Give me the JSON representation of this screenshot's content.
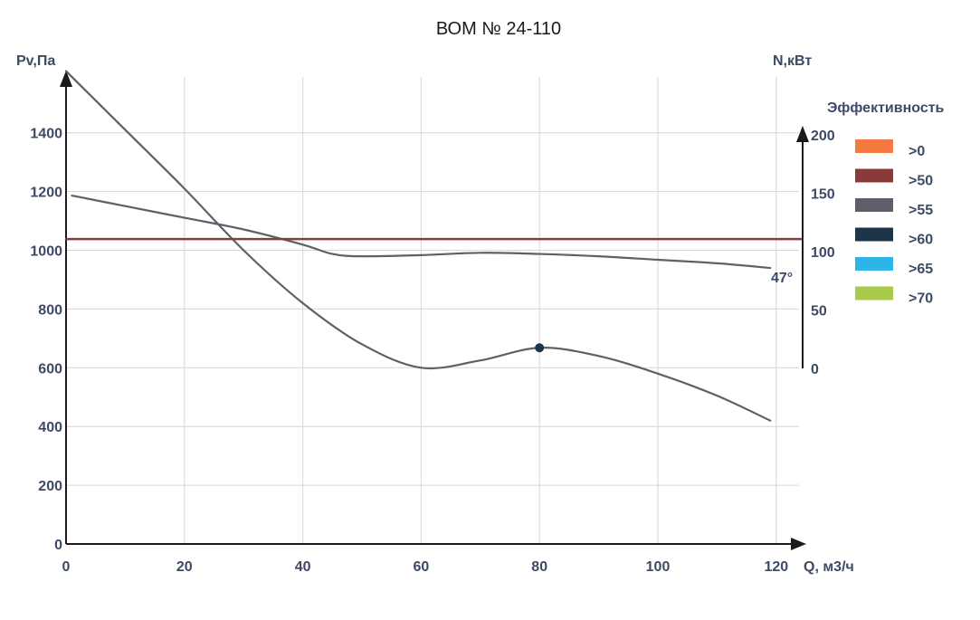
{
  "chart_data": {
    "type": "line",
    "title": "ВОМ № 24-110",
    "xlabel": "Q, м3/ч",
    "ylabel": "Pv,Па",
    "y2label": "N,кВт",
    "xlim": [
      0,
      125
    ],
    "ylim": [
      0,
      1600
    ],
    "y2lim": [
      0,
      200
    ],
    "x_ticks": [
      0,
      20,
      40,
      60,
      80,
      100,
      120
    ],
    "y_ticks": [
      0,
      200,
      400,
      600,
      800,
      1000,
      1200,
      1400
    ],
    "y2_ticks": [
      0,
      50,
      100,
      150,
      200
    ],
    "grid": true,
    "legend_title": "Эффективность",
    "legend": [
      {
        "label": ">0",
        "color": "#f47a42"
      },
      {
        "label": ">50",
        "color": "#8b3a3a"
      },
      {
        "label": ">55",
        "color": "#5f5f6b"
      },
      {
        "label": ">60",
        "color": "#1e3448"
      },
      {
        "label": ">65",
        "color": "#2fb4e6"
      },
      {
        "label": ">70",
        "color": "#a8c94a"
      }
    ],
    "series": [
      {
        "name": "Pv",
        "axis": "left",
        "color": "#5f5f6b",
        "x": [
          0,
          10,
          20,
          30,
          40,
          50,
          60,
          70,
          80,
          90,
          100,
          110,
          119
        ],
        "y": [
          1610,
          1410,
          1210,
          1000,
          820,
          680,
          600,
          625,
          668,
          640,
          580,
          505,
          420
        ]
      },
      {
        "name": "N",
        "axis": "right",
        "color": "#5f5f6b",
        "x": [
          1,
          10,
          20,
          30,
          40,
          45,
          50,
          60,
          70,
          80,
          90,
          100,
          110,
          119
        ],
        "y": [
          148,
          139,
          129,
          119,
          106,
          98,
          96,
          97,
          99,
          98,
          96,
          93,
          90,
          86
        ]
      },
      {
        "name": "efficiency-line",
        "axis": "left",
        "color": "#8b3a3a",
        "x": [
          0,
          125
        ],
        "y": [
          1038,
          1038
        ]
      }
    ],
    "marker": {
      "x": 80,
      "y": 668,
      "color": "#1e3448"
    },
    "annotations": [
      {
        "text": "47°",
        "x": 119,
        "y": 930
      }
    ]
  }
}
